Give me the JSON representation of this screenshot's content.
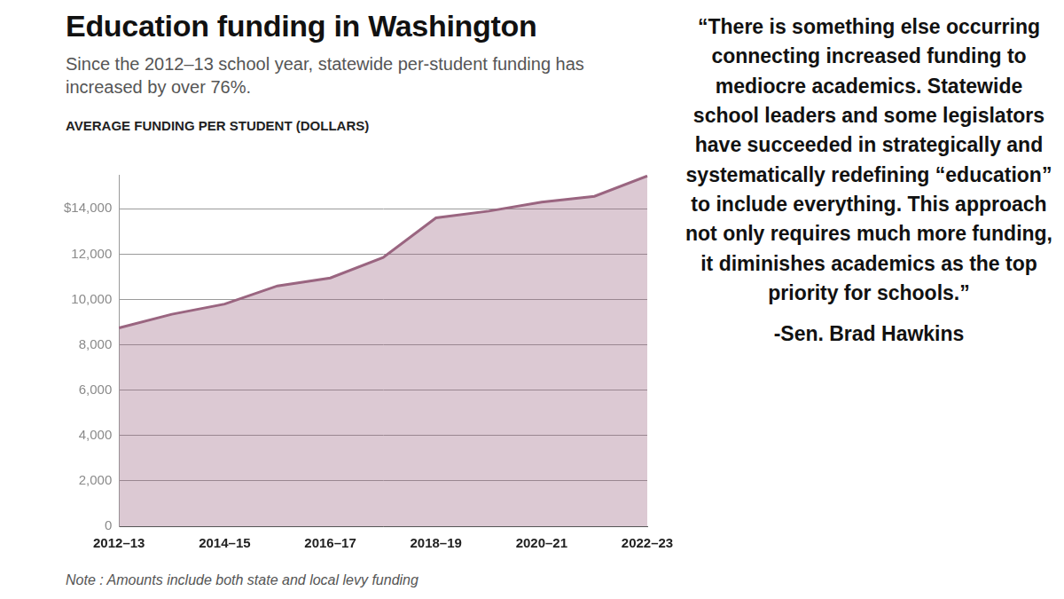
{
  "chart_data": {
    "type": "area",
    "title": "Education funding in Washington",
    "subtitle": "Since the 2012–13 school year, statewide per-student funding has increased by over 76%.",
    "y_label": "AVERAGE FUNDING PER STUDENT (DOLLARS)",
    "note": "Note : Amounts include both state and local levy funding",
    "categories": [
      "2012–13",
      null,
      "2014–15",
      null,
      "2016–17",
      null,
      "2018–19",
      null,
      "2020–21",
      null,
      "2022–23"
    ],
    "values": [
      8750,
      9350,
      9800,
      10600,
      10950,
      11850,
      13600,
      13900,
      14300,
      14550,
      15450
    ],
    "color": "#9a6580",
    "ylim": [
      0,
      15500
    ],
    "yticks": [
      0,
      {
        "value": 2000,
        "label": "2,000"
      },
      {
        "value": 4000,
        "label": "4,000"
      },
      {
        "value": 6000,
        "label": "6,000"
      },
      {
        "value": 8000,
        "label": "8,000"
      },
      {
        "value": 10000,
        "label": "10,000"
      },
      {
        "value": 12000,
        "label": "12,000"
      },
      {
        "value": 14000,
        "label": "$14,000"
      }
    ],
    "grid": true
  },
  "quote": {
    "text": "“There is something else occurring connecting increased funding to mediocre academics. Statewide school leaders and some legislators have succeeded in strategically and systematically redefining “education” to include everything. This approach not only requires much more funding, it diminishes academics as the top priority for schools.”",
    "attribution": "-Sen. Brad Hawkins"
  }
}
